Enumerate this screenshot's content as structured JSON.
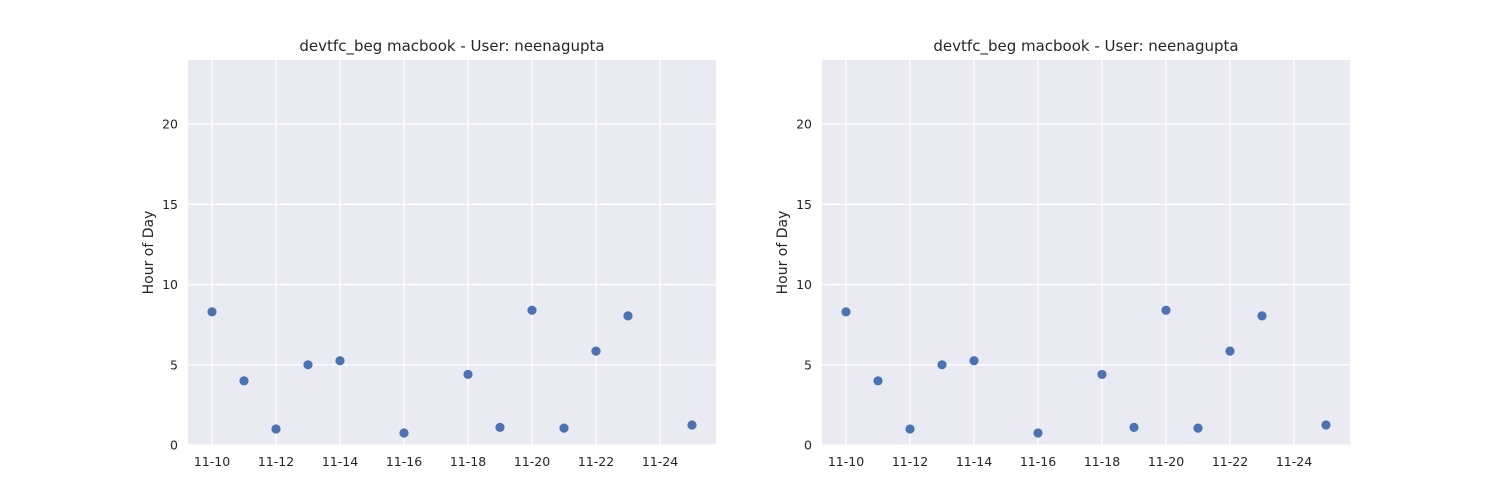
{
  "chart_data": [
    {
      "type": "scatter",
      "title": "devtfc_beg macbook - User: neenagupta",
      "xlabel": "",
      "ylabel": "Hour of Day",
      "x_tick_labels": [
        "11-10",
        "11-12",
        "11-14",
        "11-16",
        "11-18",
        "11-20",
        "11-22",
        "11-24"
      ],
      "y_ticks": [
        0,
        5,
        10,
        15,
        20
      ],
      "xlim": [
        "2023-11-09T06:00",
        "2023-11-25T18:00"
      ],
      "ylim": [
        0,
        24
      ],
      "grid": true,
      "color": "#4c72b0",
      "points": [
        {
          "x": "2023-11-10",
          "y": 8.3
        },
        {
          "x": "2023-11-11",
          "y": 4.0
        },
        {
          "x": "2023-11-12",
          "y": 1.0
        },
        {
          "x": "2023-11-13",
          "y": 5.0
        },
        {
          "x": "2023-11-14",
          "y": 5.25
        },
        {
          "x": "2023-11-16",
          "y": 0.75
        },
        {
          "x": "2023-11-18",
          "y": 4.4
        },
        {
          "x": "2023-11-19",
          "y": 1.1
        },
        {
          "x": "2023-11-20",
          "y": 8.4
        },
        {
          "x": "2023-11-21",
          "y": 1.05
        },
        {
          "x": "2023-11-22",
          "y": 5.85
        },
        {
          "x": "2023-11-23",
          "y": 8.05
        },
        {
          "x": "2023-11-25",
          "y": 1.25
        }
      ]
    },
    {
      "type": "scatter",
      "title": "devtfc_beg macbook - User: neenagupta",
      "xlabel": "",
      "ylabel": "Hour of Day",
      "x_tick_labels": [
        "11-10",
        "11-12",
        "11-14",
        "11-16",
        "11-18",
        "11-20",
        "11-22",
        "11-24"
      ],
      "y_ticks": [
        0,
        5,
        10,
        15,
        20
      ],
      "xlim": [
        "2023-11-09T06:00",
        "2023-11-25T18:00"
      ],
      "ylim": [
        0,
        24
      ],
      "grid": true,
      "color": "#4c72b0",
      "points": [
        {
          "x": "2023-11-10",
          "y": 8.3
        },
        {
          "x": "2023-11-11",
          "y": 4.0
        },
        {
          "x": "2023-11-12",
          "y": 1.0
        },
        {
          "x": "2023-11-13",
          "y": 5.0
        },
        {
          "x": "2023-11-14",
          "y": 5.25
        },
        {
          "x": "2023-11-16",
          "y": 0.75
        },
        {
          "x": "2023-11-18",
          "y": 4.4
        },
        {
          "x": "2023-11-19",
          "y": 1.1
        },
        {
          "x": "2023-11-20",
          "y": 8.4
        },
        {
          "x": "2023-11-21",
          "y": 1.05
        },
        {
          "x": "2023-11-22",
          "y": 5.85
        },
        {
          "x": "2023-11-23",
          "y": 8.05
        },
        {
          "x": "2023-11-25",
          "y": 1.25
        }
      ]
    }
  ]
}
